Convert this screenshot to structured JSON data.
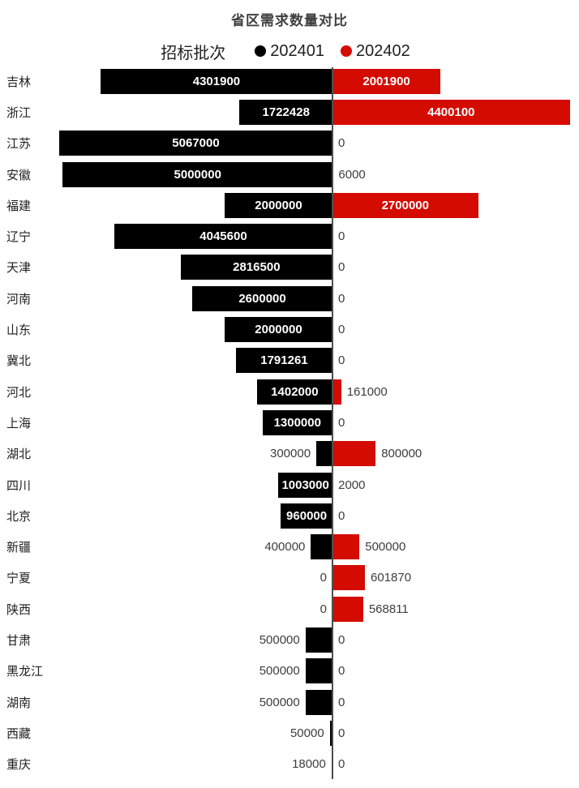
{
  "title": "省区需求数量对比",
  "legend": {
    "label": "招标批次",
    "items": [
      {
        "name": "202401",
        "color": "#000000"
      },
      {
        "name": "202402",
        "color": "#d40b00"
      }
    ]
  },
  "colors": {
    "series_202401": "#000000",
    "series_202402": "#d40b00",
    "axis_line": "#4d4d4d",
    "inside_label": "#ffffff",
    "outside_label": "#3d3d3d"
  },
  "chart_data": {
    "type": "bar",
    "variant": "diverging-horizontal",
    "title": "省区需求数量对比",
    "legend_title": "招标批次",
    "legend_position": "top",
    "grid": false,
    "value_axis_max": 5067000,
    "categories": [
      "吉林",
      "浙江",
      "江苏",
      "安徽",
      "福建",
      "辽宁",
      "天津",
      "河南",
      "山东",
      "冀北",
      "河北",
      "上海",
      "湖北",
      "四川",
      "北京",
      "新疆",
      "宁夏",
      "陕西",
      "甘肃",
      "黑龙江",
      "湖南",
      "西藏",
      "重庆"
    ],
    "series": [
      {
        "name": "202401",
        "color": "#000000",
        "direction": "left",
        "values": [
          4301900,
          1722428,
          5067000,
          5000000,
          2000000,
          4045600,
          2816500,
          2600000,
          2000000,
          1791261,
          1402000,
          1300000,
          300000,
          1003000,
          960000,
          400000,
          0,
          0,
          500000,
          500000,
          500000,
          50000,
          18000
        ]
      },
      {
        "name": "202402",
        "color": "#d40b00",
        "direction": "right",
        "values": [
          2001900,
          4400100,
          0,
          6000,
          2700000,
          0,
          0,
          0,
          0,
          0,
          161000,
          0,
          800000,
          2000,
          0,
          500000,
          601870,
          568811,
          0,
          0,
          0,
          0,
          0
        ]
      }
    ]
  }
}
